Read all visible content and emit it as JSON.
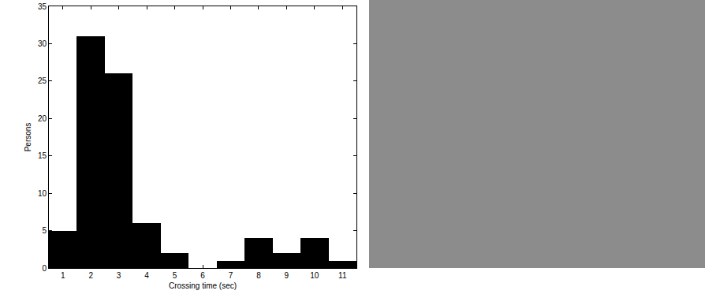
{
  "chart_data": {
    "type": "histogram",
    "x_label": "Crossing time (sec)",
    "y_label": "Persons",
    "bins": [
      0.5,
      1.5,
      2.5,
      3.5,
      4.5,
      5.5,
      6.5,
      7.5,
      8.5,
      9.5,
      10.5,
      11.5
    ],
    "values": [
      5,
      31,
      26,
      6,
      2,
      0,
      1,
      4,
      2,
      4,
      1
    ],
    "color": "#000000",
    "xlim": [
      0.5,
      11.5
    ],
    "xticks": [
      1,
      2,
      3,
      4,
      5,
      6,
      7,
      8,
      9,
      10,
      11
    ],
    "ylim": [
      0,
      35
    ],
    "yticks": [
      0,
      5,
      10,
      15,
      20,
      25,
      30,
      35
    ],
    "grid": false
  }
}
